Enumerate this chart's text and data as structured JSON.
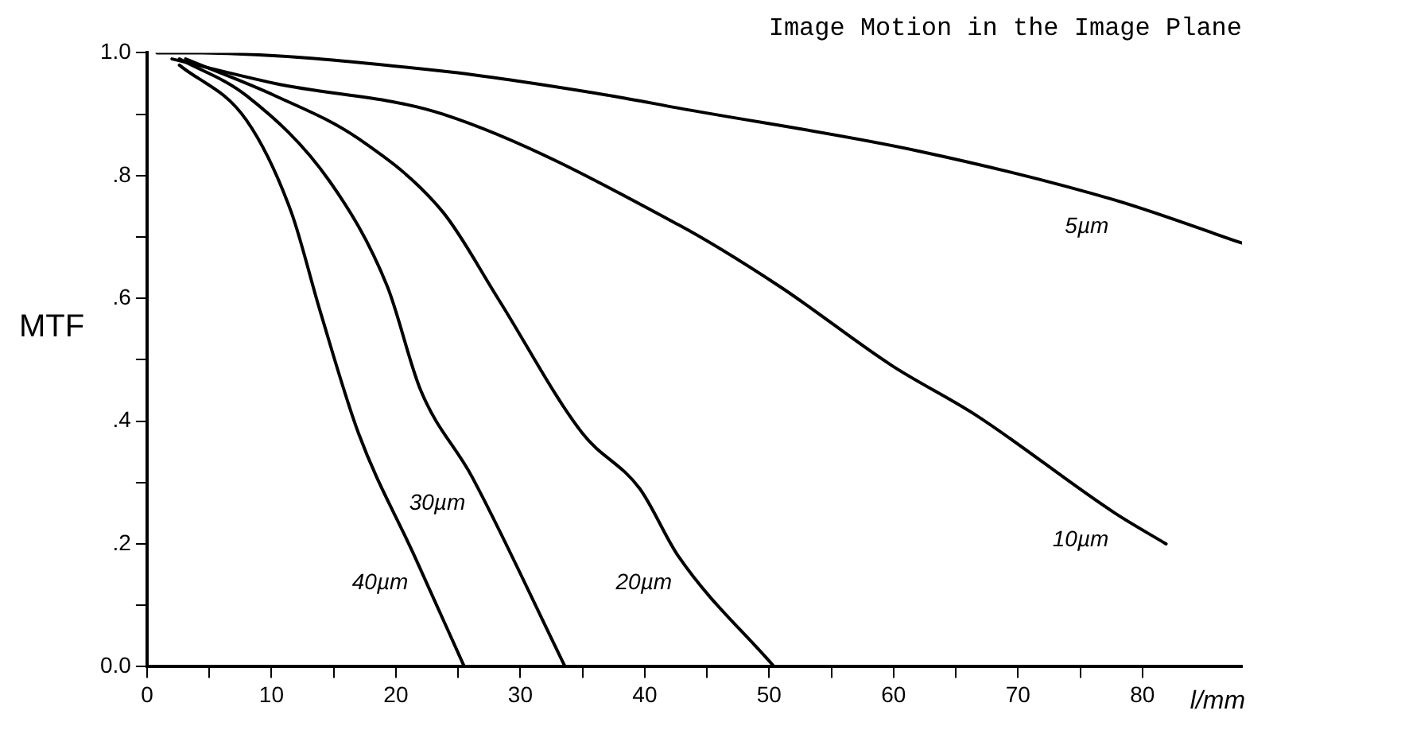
{
  "chart_data": {
    "type": "line",
    "title": "Image Motion in the Image Plane",
    "xlabel": "l/mm",
    "ylabel": "MTF",
    "xlim": [
      0,
      88
    ],
    "ylim": [
      0,
      1
    ],
    "xticks": [
      0,
      {
        "value": 5,
        "label": null
      },
      10,
      {
        "value": 15,
        "label": null
      },
      20,
      {
        "value": 25,
        "label": null
      },
      30,
      {
        "value": 35,
        "label": null
      },
      40,
      {
        "value": 45,
        "label": null
      },
      50,
      {
        "value": 55,
        "label": null
      },
      60,
      {
        "value": 65,
        "label": null
      },
      70,
      {
        "value": 75,
        "label": null
      },
      80
    ],
    "yticks": [
      {
        "value": 0,
        "label": "0.0"
      },
      {
        "value": 0.1,
        "label": null
      },
      {
        "value": 0.2,
        "label": ".2"
      },
      {
        "value": 0.3,
        "label": null
      },
      {
        "value": 0.4,
        "label": ".4"
      },
      {
        "value": 0.5,
        "label": null
      },
      {
        "value": 0.6,
        "label": ".6"
      },
      {
        "value": 0.7,
        "label": null
      },
      {
        "value": 0.8,
        "label": ".8"
      },
      {
        "value": 0.9,
        "label": null
      },
      {
        "value": 1,
        "label": "1.0"
      }
    ],
    "grid": false,
    "legend": false,
    "marker": "none",
    "line_style": "solid",
    "series": [
      {
        "name": "5µm",
        "color": "#000000",
        "x": [
          0.8,
          3,
          23.8,
          37.3,
          42.7,
          62,
          77.8,
          88
        ],
        "values": [
          1.0,
          1.0,
          0.97,
          0.93,
          0.91,
          0.84,
          0.76,
          0.69
        ]
      },
      {
        "name": "10µm",
        "color": "#000000",
        "x": [
          2,
          10.3,
          23.8,
          42.7,
          50.8,
          59.9,
          66.6,
          77.8,
          81.9
        ],
        "values": [
          0.99,
          0.95,
          0.9,
          0.72,
          0.62,
          0.49,
          0.41,
          0.25,
          0.2
        ]
      },
      {
        "name": "20µm",
        "color": "#000000",
        "x": [
          3.1,
          10.3,
          17,
          23.8,
          28.2,
          35,
          39.6,
          42.7,
          50.4
        ],
        "values": [
          0.99,
          0.93,
          0.86,
          0.74,
          0.6,
          0.38,
          0.29,
          0.18,
          0
        ]
      },
      {
        "name": "30µm",
        "color": "#000000",
        "x": [
          2.6,
          8,
          14.7,
          19.3,
          22,
          26.1,
          33.6
        ],
        "values": [
          0.99,
          0.93,
          0.79,
          0.62,
          0.45,
          0.31,
          0
        ]
      },
      {
        "name": "40µm",
        "color": "#000000",
        "x": [
          2.6,
          8,
          11.6,
          13.9,
          17,
          21.5,
          25.5
        ],
        "values": [
          0.98,
          0.89,
          0.74,
          0.58,
          0.38,
          0.18,
          0
        ]
      }
    ]
  }
}
